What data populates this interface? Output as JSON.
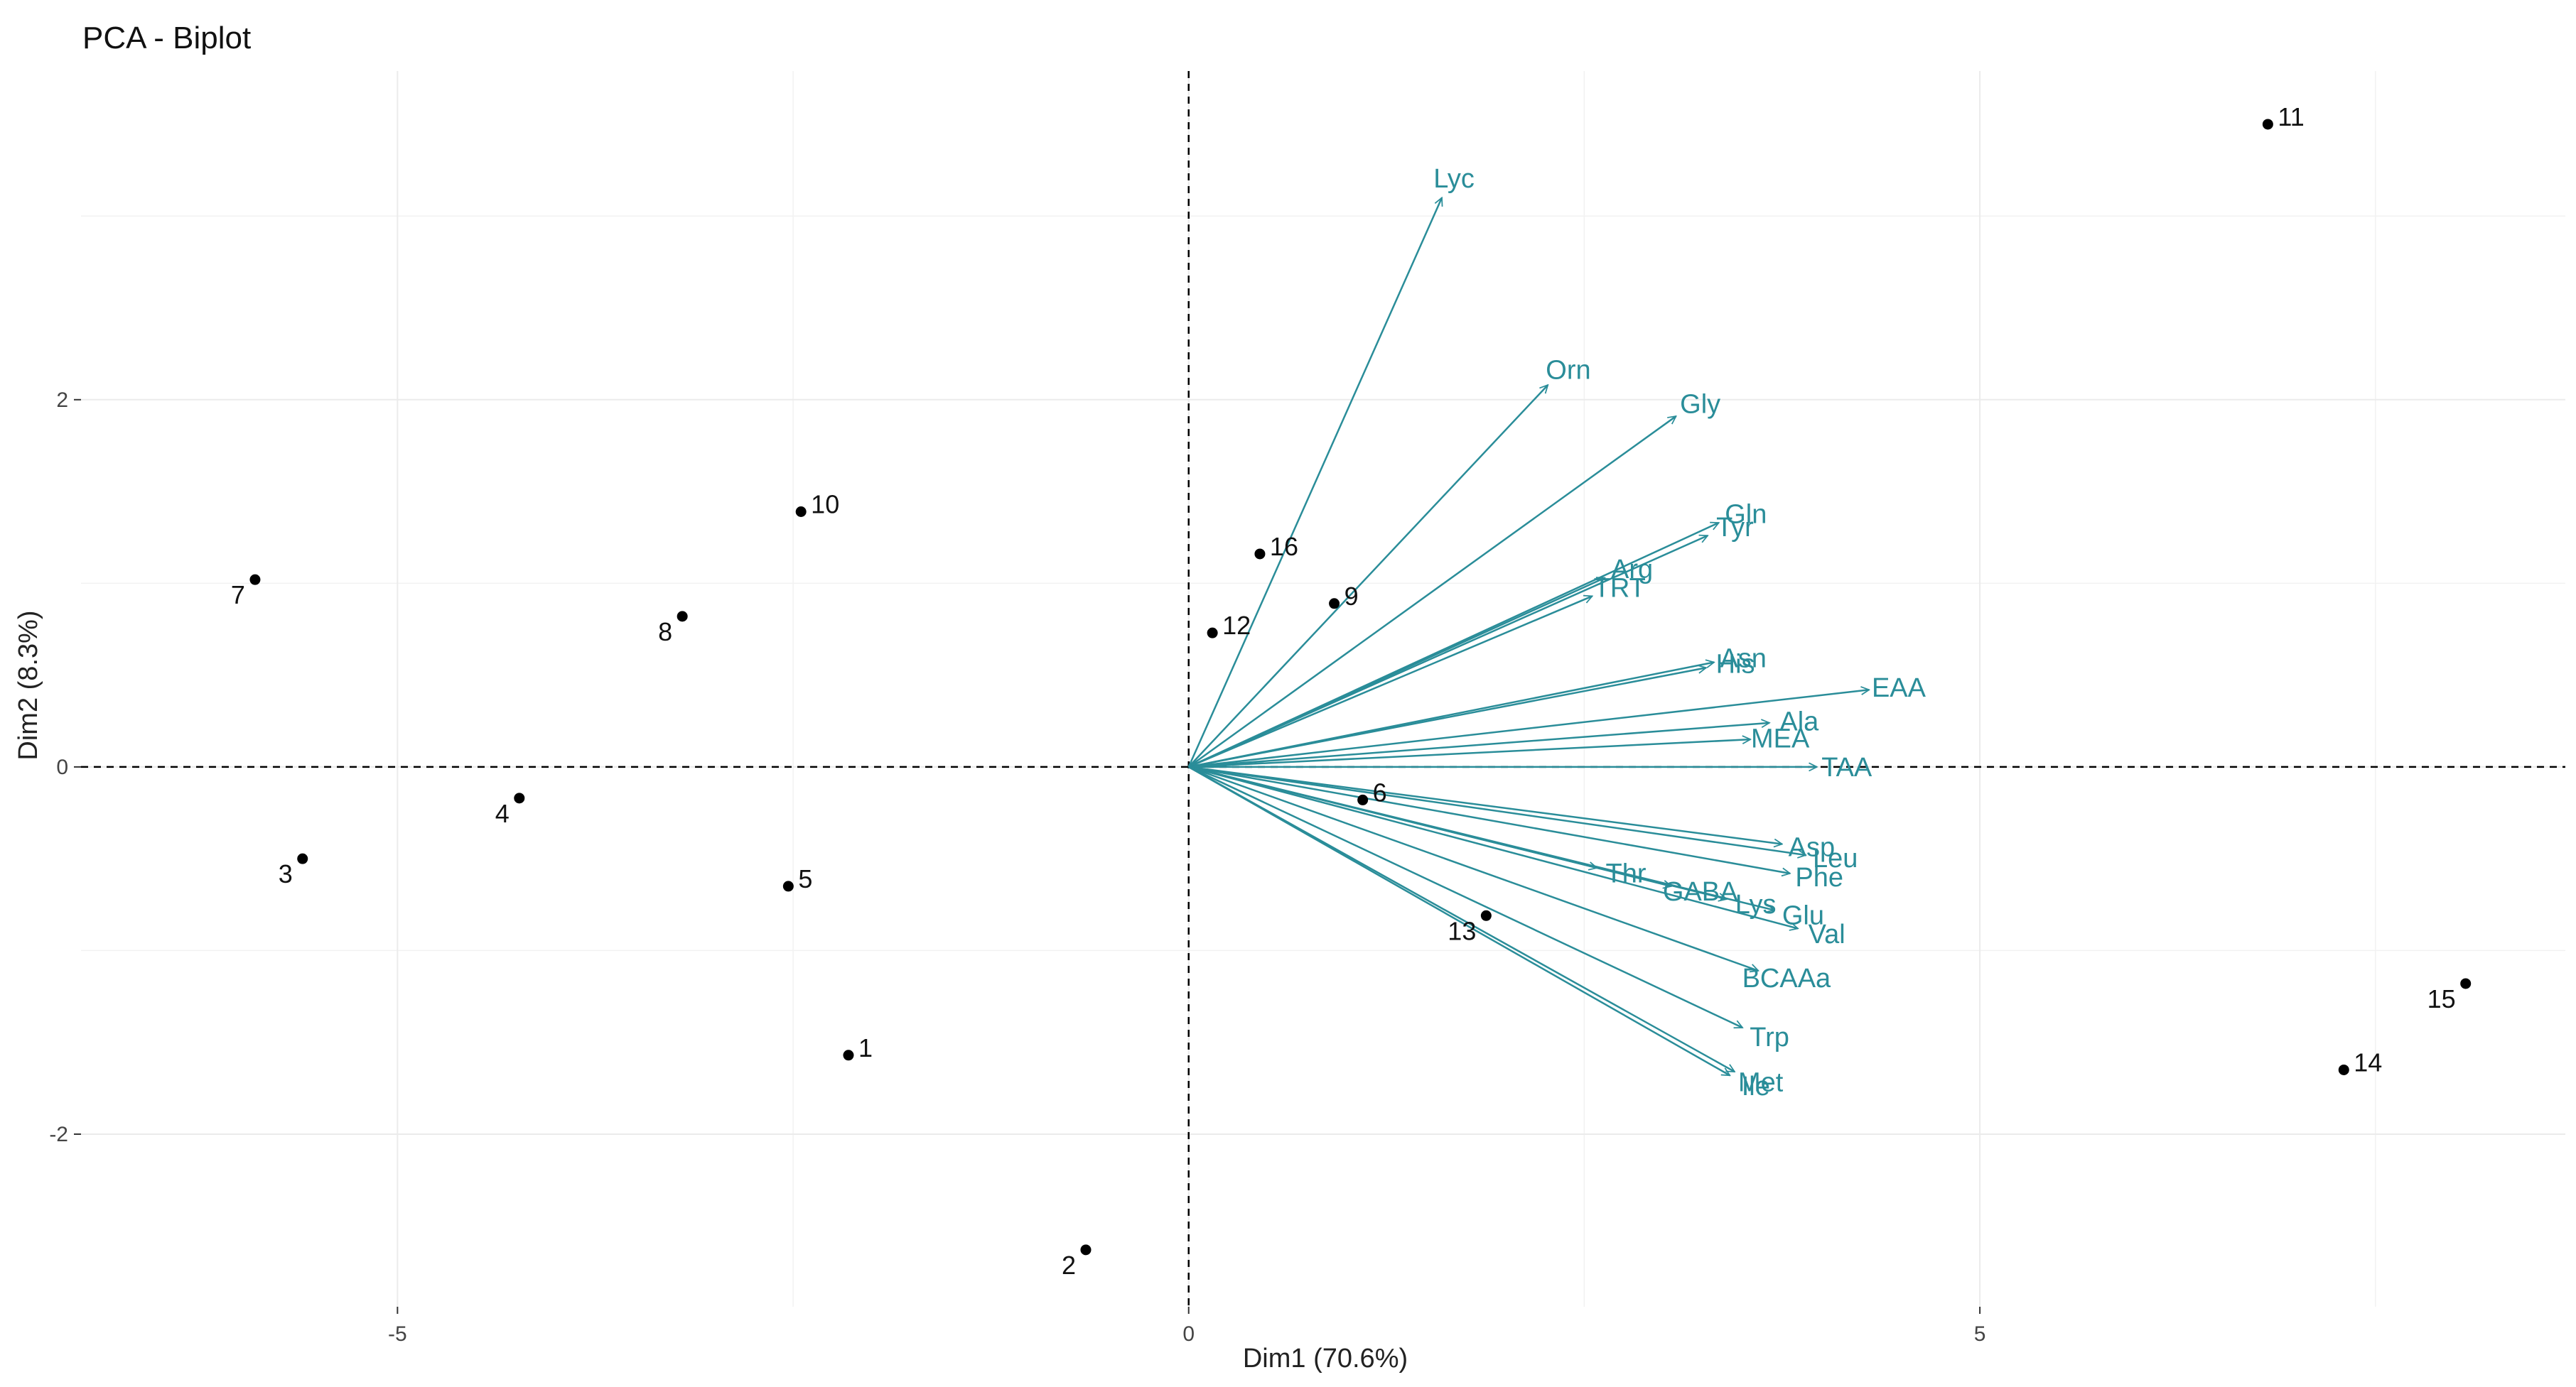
{
  "chart_data": {
    "type": "scatter",
    "subtype": "pca-biplot",
    "title": "PCA - Biplot",
    "xlabel": "Dim1 (70.6%)",
    "ylabel": "Dim2 (8.3%)",
    "xlim": [
      -7,
      8.7
    ],
    "ylim": [
      -2.94,
      3.79
    ],
    "xticks": [
      -5,
      0,
      5
    ],
    "xtick_labels": [
      "-5",
      "0",
      "5"
    ],
    "yticks": [
      -2,
      0,
      2
    ],
    "ytick_labels": [
      "-2",
      "0",
      "2"
    ],
    "reference_lines": {
      "x": 0,
      "y": 0,
      "style": "dashed"
    },
    "colors": {
      "points": "#000000",
      "arrows": "#2a8d99",
      "grid": "#ebebeb"
    },
    "points": [
      {
        "label": "1",
        "x": -2.15,
        "y": -1.57
      },
      {
        "label": "2",
        "x": -0.65,
        "y": -2.63
      },
      {
        "label": "3",
        "x": -5.6,
        "y": -0.5
      },
      {
        "label": "4",
        "x": -4.23,
        "y": -0.17
      },
      {
        "label": "5",
        "x": -2.53,
        "y": -0.65
      },
      {
        "label": "6",
        "x": 1.1,
        "y": -0.18
      },
      {
        "label": "7",
        "x": -5.9,
        "y": 1.02
      },
      {
        "label": "8",
        "x": -3.2,
        "y": 0.82
      },
      {
        "label": "9",
        "x": 0.92,
        "y": 0.89
      },
      {
        "label": "10",
        "x": -2.45,
        "y": 1.39
      },
      {
        "label": "11",
        "x": 6.82,
        "y": 3.5
      },
      {
        "label": "12",
        "x": 0.15,
        "y": 0.73
      },
      {
        "label": "13",
        "x": 1.88,
        "y": -0.81
      },
      {
        "label": "14",
        "x": 7.3,
        "y": -1.65
      },
      {
        "label": "15",
        "x": 8.07,
        "y": -1.18
      },
      {
        "label": "16",
        "x": 0.45,
        "y": 1.16
      }
    ],
    "variables": [
      {
        "label": "Lyc",
        "x": 1.6,
        "y": 3.1
      },
      {
        "label": "Orn",
        "x": 2.27,
        "y": 2.08
      },
      {
        "label": "Gly",
        "x": 3.08,
        "y": 1.91
      },
      {
        "label": "Gln",
        "x": 3.35,
        "y": 1.33
      },
      {
        "label": "Tyr",
        "x": 3.28,
        "y": 1.26
      },
      {
        "label": "Arg",
        "x": 2.63,
        "y": 1.03
      },
      {
        "label": "TRT",
        "x": 2.55,
        "y": 0.93
      },
      {
        "label": "Asn",
        "x": 3.32,
        "y": 0.57
      },
      {
        "label": "His",
        "x": 3.27,
        "y": 0.54
      },
      {
        "label": "EAA",
        "x": 4.3,
        "y": 0.42
      },
      {
        "label": "Ala",
        "x": 3.67,
        "y": 0.24
      },
      {
        "label": "MEA",
        "x": 3.55,
        "y": 0.15
      },
      {
        "label": "TAA",
        "x": 3.97,
        "y": 0.0
      },
      {
        "label": "Asp",
        "x": 3.75,
        "y": -0.42
      },
      {
        "label": "Leu",
        "x": 3.9,
        "y": -0.48
      },
      {
        "label": "Phe",
        "x": 3.8,
        "y": -0.58
      },
      {
        "label": "Lys",
        "x": 3.4,
        "y": -0.72
      },
      {
        "label": "Thr",
        "x": 2.58,
        "y": -0.55
      },
      {
        "label": "Glu",
        "x": 3.7,
        "y": -0.78
      },
      {
        "label": "Val",
        "x": 3.85,
        "y": -0.88
      },
      {
        "label": "GABA",
        "x": 3.05,
        "y": -0.65
      },
      {
        "label": "BCAAa",
        "x": 3.6,
        "y": -1.11
      },
      {
        "label": "Trp",
        "x": 3.5,
        "y": -1.42
      },
      {
        "label": "Met",
        "x": 3.45,
        "y": -1.66
      },
      {
        "label": "Ile",
        "x": 3.42,
        "y": -1.68
      }
    ]
  }
}
